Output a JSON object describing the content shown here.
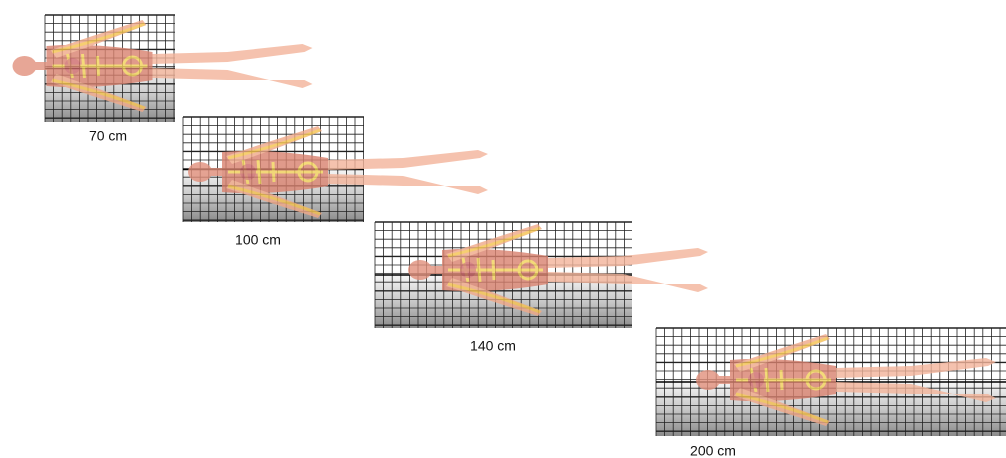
{
  "panels": [
    {
      "label": "70 cm"
    },
    {
      "label": "100 cm"
    },
    {
      "label": "140 cm"
    },
    {
      "label": "200 cm"
    }
  ]
}
